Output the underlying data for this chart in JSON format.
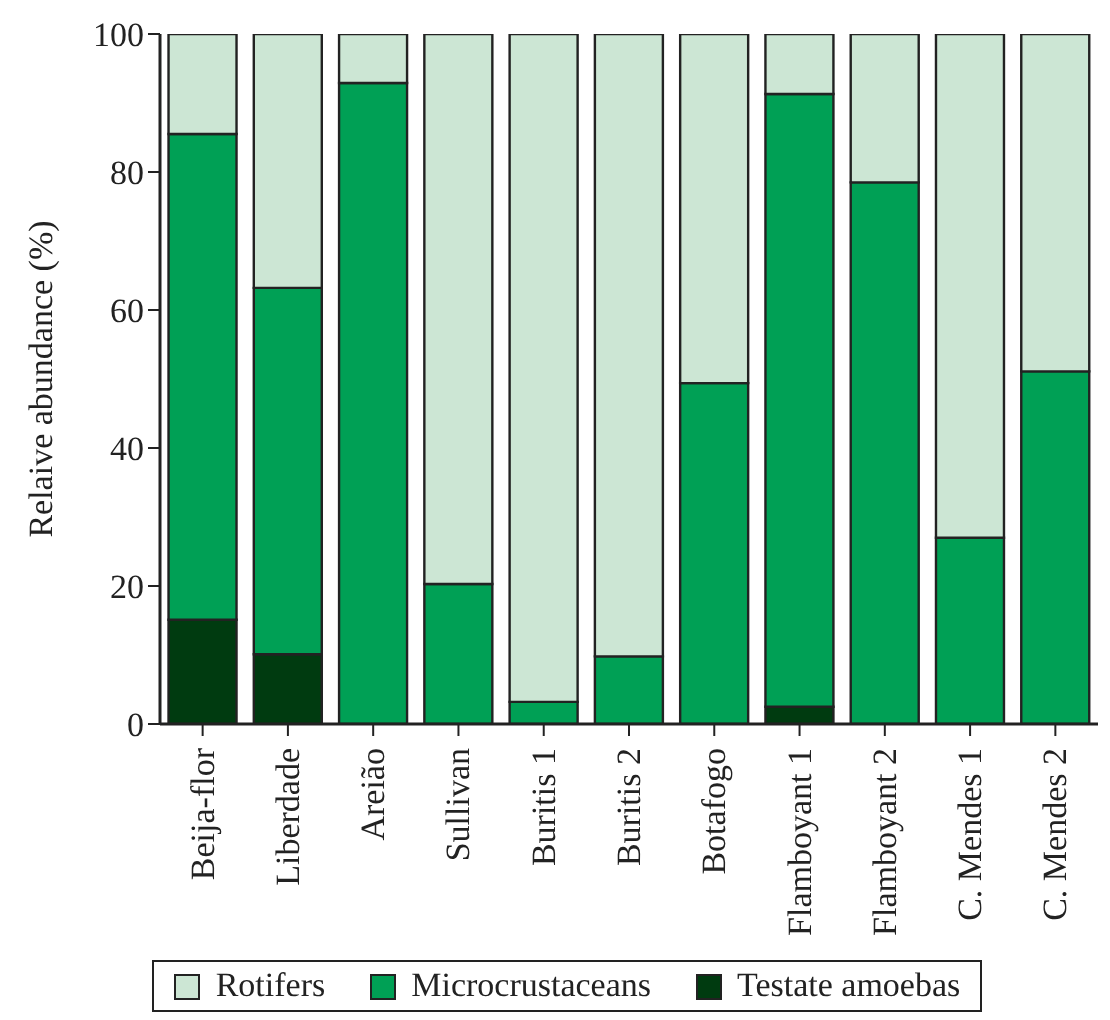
{
  "chart_data": {
    "type": "bar",
    "stacked": true,
    "ylabel": "Relaive abundance (%)",
    "categories": [
      "Beija-flor",
      "Liberdade",
      "Areião",
      "Sullivan",
      "Buritis 1",
      "Buritis 2",
      "Botafogo",
      "Flamboyant 1",
      "Flamboyant 2",
      "C. Mendes 1",
      "C. Mendes 2"
    ],
    "series": [
      {
        "name": "Testate amoebas",
        "color": "#003b10",
        "values": [
          15.1,
          10.1,
          0,
          0,
          0,
          0,
          0,
          2.5,
          0,
          0,
          0
        ]
      },
      {
        "name": "Microcrustaceans",
        "color": "#00a055",
        "values": [
          70.4,
          53.1,
          92.9,
          20.3,
          3.2,
          9.8,
          49.4,
          88.8,
          78.5,
          27.0,
          51.1
        ]
      },
      {
        "name": "Rotifers",
        "color": "#cce6d4",
        "values": [
          14.5,
          36.8,
          7.1,
          79.7,
          96.8,
          90.2,
          50.6,
          8.7,
          21.5,
          73.0,
          48.9
        ]
      }
    ],
    "ylim": [
      0,
      100
    ],
    "yticks": [
      0,
      20,
      40,
      60,
      80,
      100
    ],
    "grid": false,
    "legend": "bottom"
  }
}
